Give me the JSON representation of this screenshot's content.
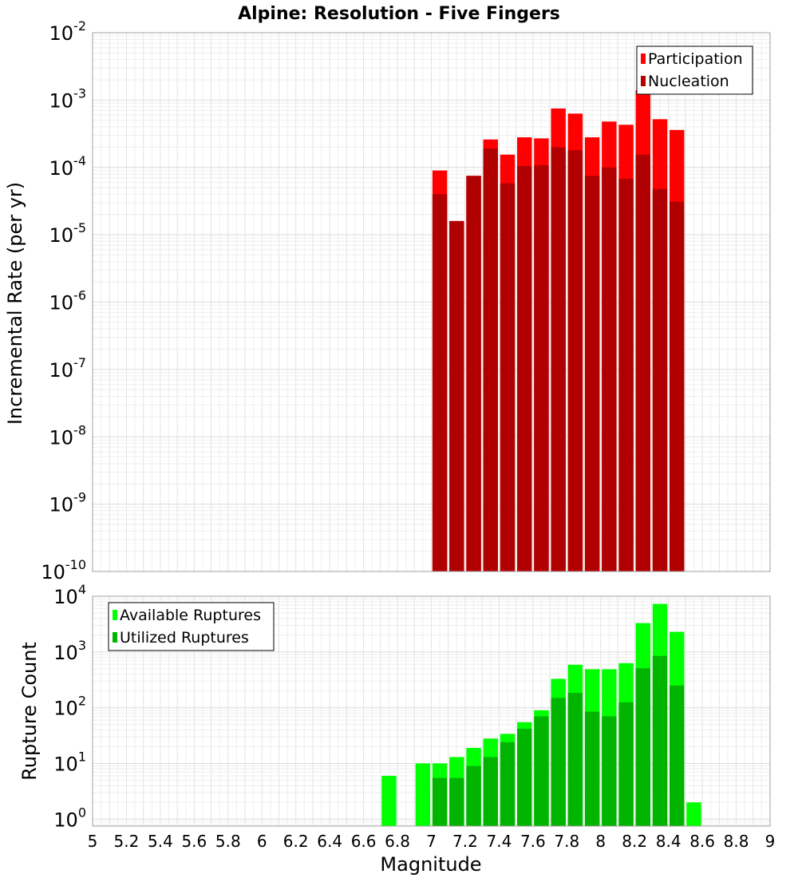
{
  "chart_data": [
    {
      "type": "bar",
      "title": "Alpine: Resolution - Five Fingers",
      "xlabel": "",
      "ylabel": "Incremental Rate (per yr)",
      "xlim": [
        5,
        9
      ],
      "ylim": [
        1e-10,
        0.01
      ],
      "yscale": "log",
      "grid": true,
      "legend_position": "top-right",
      "x": [
        7.05,
        7.15,
        7.25,
        7.35,
        7.45,
        7.55,
        7.65,
        7.75,
        7.85,
        7.95,
        8.05,
        8.15,
        8.25,
        8.35,
        8.45
      ],
      "series": [
        {
          "name": "Participation",
          "color": "#ff0000",
          "values": [
            9e-05,
            1.6e-05,
            7.5e-05,
            0.00026,
            0.000155,
            0.00028,
            0.00027,
            0.00075,
            0.00063,
            0.00028,
            0.00048,
            0.00043,
            0.0014,
            0.00052,
            0.00036
          ]
        },
        {
          "name": "Nucleation",
          "color": "#b00000",
          "values": [
            4e-05,
            1.6e-05,
            7.5e-05,
            0.00019,
            5.8e-05,
            0.000105,
            0.000108,
            0.0002,
            0.00018,
            7.5e-05,
            0.0001,
            6.8e-05,
            0.000155,
            4.8e-05,
            3.1e-05
          ]
        }
      ]
    },
    {
      "type": "bar",
      "title": "",
      "xlabel": "Magnitude",
      "ylabel": "Rupture Count",
      "xlim": [
        5,
        9
      ],
      "xticks": [
        "5",
        "5.2",
        "5.4",
        "5.6",
        "5.8",
        "6",
        "6.2",
        "6.4",
        "6.6",
        "6.8",
        "7",
        "7.2",
        "7.4",
        "7.6",
        "7.8",
        "8",
        "8.2",
        "8.4",
        "8.6",
        "8.8",
        "9"
      ],
      "ylim": [
        0.75,
        10000.0
      ],
      "yscale": "log",
      "grid": true,
      "legend_position": "top-left",
      "x": [
        6.75,
        6.95,
        7.05,
        7.15,
        7.25,
        7.35,
        7.45,
        7.55,
        7.65,
        7.75,
        7.85,
        7.95,
        8.05,
        8.15,
        8.25,
        8.35,
        8.45,
        8.55
      ],
      "series": [
        {
          "name": "Available Ruptures",
          "color": "#00ff00",
          "values": [
            6,
            10,
            10,
            13,
            19,
            28,
            34,
            55,
            90,
            330,
            590,
            490,
            490,
            630,
            3300,
            7300,
            2300,
            2
          ]
        },
        {
          "name": "Utilized Ruptures",
          "color": "#00b400",
          "values": [
            0,
            0,
            5.5,
            5.5,
            9,
            13,
            24,
            42,
            70,
            150,
            185,
            85,
            70,
            125,
            510,
            850,
            250,
            0
          ]
        }
      ]
    }
  ]
}
